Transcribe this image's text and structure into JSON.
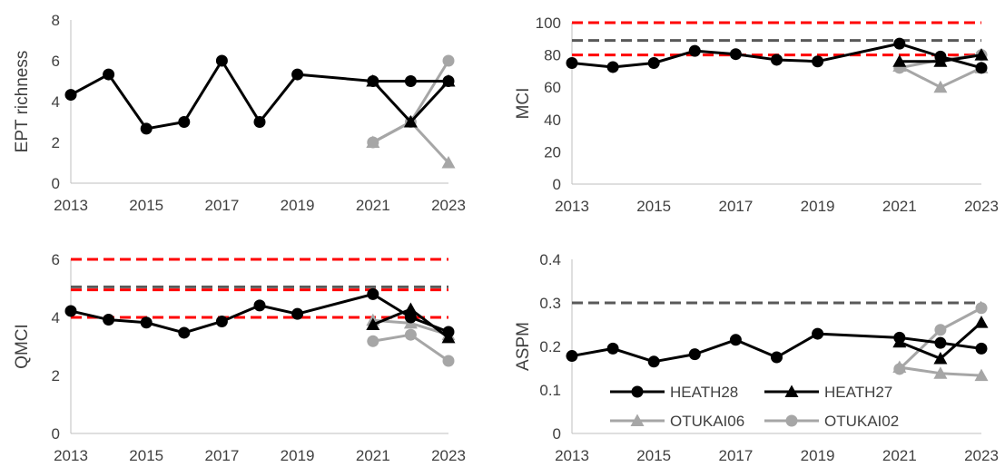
{
  "chart_data": [
    {
      "type": "line",
      "ylabel": "EPT richness",
      "ylim": [
        0,
        8
      ],
      "yticks": [
        0,
        2,
        4,
        6,
        8
      ],
      "xlim": [
        2013,
        2023
      ],
      "xticks": [
        2013,
        2015,
        2017,
        2019,
        2021,
        2023
      ],
      "reference_lines": [],
      "series": [
        {
          "name": "HEATH28",
          "color": "#000000",
          "marker": "circle",
          "x": [
            2013,
            2014,
            2015,
            2016,
            2017,
            2018,
            2019,
            2021,
            2022,
            2023
          ],
          "y": [
            4.33,
            5.33,
            2.67,
            3.0,
            6.0,
            3.0,
            5.33,
            5.0,
            5.0,
            5.0
          ]
        },
        {
          "name": "HEATH27",
          "color": "#000000",
          "marker": "triangle",
          "x": [
            2021,
            2022,
            2023
          ],
          "y": [
            5.0,
            3.0,
            5.0
          ]
        },
        {
          "name": "OTUKAI06",
          "color": "#a6a6a6",
          "marker": "triangle",
          "x": [
            2021,
            2022,
            2023
          ],
          "y": [
            2.0,
            3.0,
            1.0
          ]
        },
        {
          "name": "OTUKAI02",
          "color": "#a6a6a6",
          "marker": "circle",
          "x": [
            2021,
            2022,
            2023
          ],
          "y": [
            2.0,
            3.0,
            6.0
          ]
        }
      ]
    },
    {
      "type": "line",
      "ylabel": "MCI",
      "ylim": [
        0,
        100
      ],
      "yticks": [
        0,
        20,
        40,
        60,
        80,
        100
      ],
      "xlim": [
        2013,
        2023
      ],
      "xticks": [
        2013,
        2015,
        2017,
        2019,
        2021,
        2023
      ],
      "reference_lines": [
        {
          "y": 100,
          "color": "#ff0000"
        },
        {
          "y": 89,
          "color": "#595959"
        },
        {
          "y": 80,
          "color": "#ff0000"
        }
      ],
      "series": [
        {
          "name": "HEATH28",
          "color": "#000000",
          "marker": "circle",
          "x": [
            2013,
            2014,
            2015,
            2016,
            2017,
            2018,
            2019,
            2021,
            2022,
            2023
          ],
          "y": [
            75,
            72.5,
            75,
            82.5,
            80.5,
            77,
            76,
            87,
            79,
            72
          ]
        },
        {
          "name": "HEATH27",
          "color": "#000000",
          "marker": "triangle",
          "x": [
            2021,
            2022,
            2023
          ],
          "y": [
            76,
            76,
            80
          ]
        },
        {
          "name": "OTUKAI06",
          "color": "#a6a6a6",
          "marker": "triangle",
          "x": [
            2021,
            2022,
            2023
          ],
          "y": [
            73,
            60,
            72
          ]
        },
        {
          "name": "OTUKAI02",
          "color": "#a6a6a6",
          "marker": "circle",
          "x": [
            2021,
            2022,
            2023
          ],
          "y": [
            72,
            77,
            80
          ]
        }
      ]
    },
    {
      "type": "line",
      "ylabel": "QMCI",
      "ylim": [
        0,
        6
      ],
      "yticks": [
        0,
        2,
        4,
        6
      ],
      "xlim": [
        2013,
        2023
      ],
      "xticks": [
        2013,
        2015,
        2017,
        2019,
        2021,
        2023
      ],
      "reference_lines": [
        {
          "y": 6,
          "color": "#ff0000"
        },
        {
          "y": 5.05,
          "color": "#595959"
        },
        {
          "y": 4.95,
          "color": "#ff0000"
        },
        {
          "y": 4.0,
          "color": "#ff0000"
        }
      ],
      "series": [
        {
          "name": "HEATH28",
          "color": "#000000",
          "marker": "circle",
          "x": [
            2013,
            2014,
            2015,
            2016,
            2017,
            2018,
            2019,
            2021,
            2022,
            2023
          ],
          "y": [
            4.22,
            3.92,
            3.82,
            3.47,
            3.86,
            4.41,
            4.12,
            4.8,
            4.0,
            3.5
          ]
        },
        {
          "name": "HEATH27",
          "color": "#000000",
          "marker": "triangle",
          "x": [
            2021,
            2022,
            2023
          ],
          "y": [
            3.75,
            4.28,
            3.3
          ]
        },
        {
          "name": "OTUKAI06",
          "color": "#a6a6a6",
          "marker": "triangle",
          "x": [
            2021,
            2022,
            2023
          ],
          "y": [
            3.9,
            3.8,
            3.4
          ]
        },
        {
          "name": "OTUKAI02",
          "color": "#a6a6a6",
          "marker": "circle",
          "x": [
            2021,
            2022,
            2023
          ],
          "y": [
            3.18,
            3.4,
            2.5
          ]
        }
      ]
    },
    {
      "type": "line",
      "ylabel": "ASPM",
      "ylim": [
        0,
        0.4
      ],
      "yticks": [
        0,
        0.1,
        0.2,
        0.3,
        0.4
      ],
      "xlim": [
        2013,
        2023
      ],
      "xticks": [
        2013,
        2015,
        2017,
        2019,
        2021,
        2023
      ],
      "reference_lines": [
        {
          "y": 0.3,
          "color": "#595959"
        }
      ],
      "legend": "lower-left",
      "series": [
        {
          "name": "HEATH28",
          "color": "#000000",
          "marker": "circle",
          "x": [
            2013,
            2014,
            2015,
            2016,
            2017,
            2018,
            2019,
            2021,
            2022,
            2023
          ],
          "y": [
            0.178,
            0.195,
            0.165,
            0.182,
            0.215,
            0.175,
            0.229,
            0.22,
            0.208,
            0.195
          ]
        },
        {
          "name": "HEATH27",
          "color": "#000000",
          "marker": "triangle",
          "x": [
            2021,
            2022,
            2023
          ],
          "y": [
            0.21,
            0.172,
            0.255
          ]
        },
        {
          "name": "OTUKAI06",
          "color": "#a6a6a6",
          "marker": "triangle",
          "x": [
            2021,
            2022,
            2023
          ],
          "y": [
            0.152,
            0.138,
            0.133
          ]
        },
        {
          "name": "OTUKAI02",
          "color": "#a6a6a6",
          "marker": "circle",
          "x": [
            2021,
            2022,
            2023
          ],
          "y": [
            0.148,
            0.238,
            0.288
          ]
        }
      ]
    }
  ]
}
